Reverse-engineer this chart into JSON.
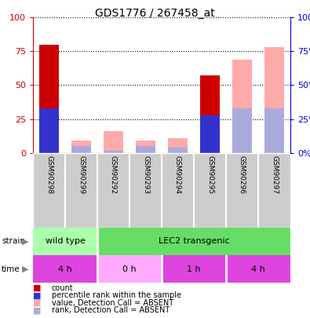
{
  "title": "GDS1776 / 267458_at",
  "samples": [
    "GSM90298",
    "GSM90299",
    "GSM90292",
    "GSM90293",
    "GSM90294",
    "GSM90295",
    "GSM90296",
    "GSM90297"
  ],
  "count": [
    80,
    0,
    0,
    0,
    0,
    57,
    0,
    0
  ],
  "percentile_rank": [
    33,
    0,
    0,
    0,
    0,
    28,
    0,
    0
  ],
  "value_absent": [
    0,
    9,
    16,
    9,
    11,
    0,
    69,
    78
  ],
  "rank_absent": [
    0,
    5,
    2,
    5,
    4,
    0,
    33,
    33
  ],
  "count_color": "#cc0000",
  "percentile_color": "#3333cc",
  "value_absent_color": "#ffaaaa",
  "rank_absent_color": "#aaaadd",
  "ylim": [
    0,
    100
  ],
  "yticks": [
    0,
    25,
    50,
    75,
    100
  ],
  "ytick_labels_left": [
    "0",
    "25",
    "50",
    "75",
    "100"
  ],
  "ytick_labels_right": [
    "0%",
    "25%",
    "50%",
    "75%",
    "100%"
  ],
  "left_axis_color": "#cc0000",
  "right_axis_color": "#0000cc",
  "strain_groups": [
    {
      "label": "wild type",
      "start": 0,
      "end": 2,
      "color": "#aaffaa"
    },
    {
      "label": "LEC2 transgenic",
      "start": 2,
      "end": 8,
      "color": "#66dd66"
    }
  ],
  "time_groups": [
    {
      "label": "4 h",
      "start": 0,
      "end": 2,
      "color": "#dd44dd"
    },
    {
      "label": "0 h",
      "start": 2,
      "end": 4,
      "color": "#ffaaff"
    },
    {
      "label": "1 h",
      "start": 4,
      "end": 6,
      "color": "#dd44dd"
    },
    {
      "label": "4 h",
      "start": 6,
      "end": 8,
      "color": "#dd44dd"
    }
  ],
  "legend_items": [
    {
      "label": "count",
      "color": "#cc0000"
    },
    {
      "label": "percentile rank within the sample",
      "color": "#3333cc"
    },
    {
      "label": "value, Detection Call = ABSENT",
      "color": "#ffaaaa"
    },
    {
      "label": "rank, Detection Call = ABSENT",
      "color": "#aaaadd"
    }
  ],
  "bar_width": 0.6,
  "plot_bg_color": "#ffffff",
  "sample_area_color": "#cccccc",
  "grid_color": "#000000"
}
